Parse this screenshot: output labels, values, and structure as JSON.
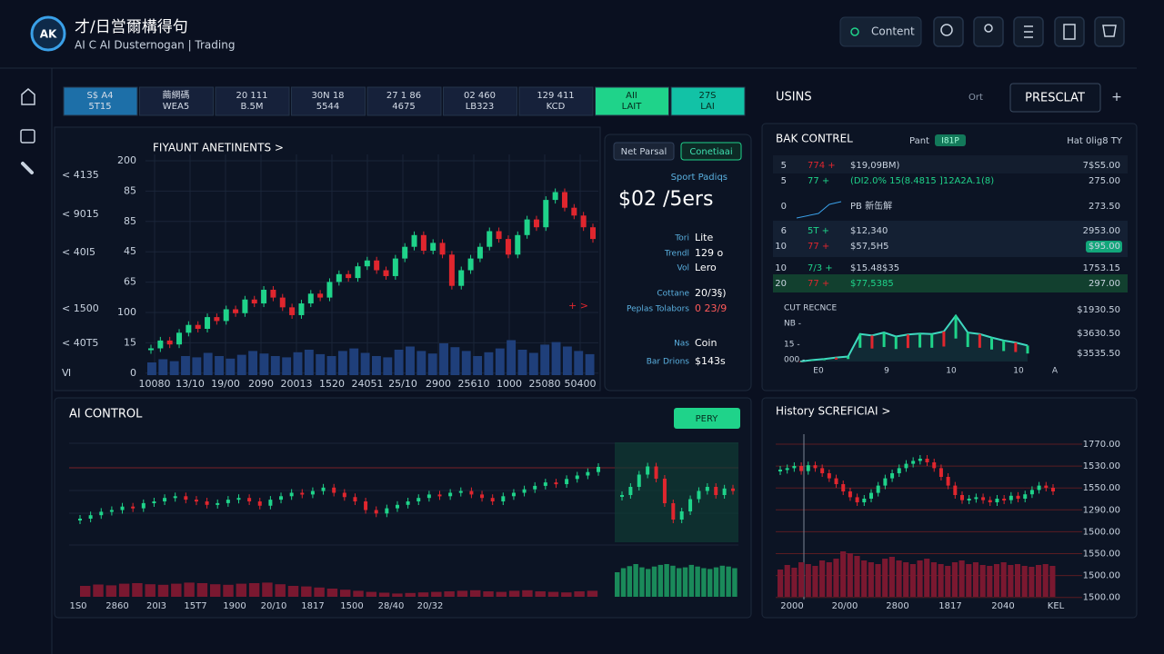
{
  "header": {
    "title": "才/日営爾構得句",
    "subtitle": "AI C AI Dusternogan | Trading",
    "content_button": "Content"
  },
  "tickers": [
    {
      "top": "S$ A4",
      "bottom": "5T15"
    },
    {
      "top": "繭網碼",
      "bottom": "WEA5"
    },
    {
      "top": "20 111",
      "bottom": "B.5M"
    },
    {
      "top": "30N 18",
      "bottom": "5544"
    },
    {
      "top": "27 1 86",
      "bottom": "4675"
    },
    {
      "top": "02 460",
      "bottom": "LB323"
    },
    {
      "top": "129 411",
      "bottom": "KCD"
    },
    {
      "top": "AII",
      "bottom": "LAIT"
    },
    {
      "top": "27S",
      "bottom": "LAI"
    }
  ],
  "main_chart": {
    "title": "FIYAUNT ANETINENTS >",
    "side_labels": [
      "< 4135",
      "< 9015",
      "< 40I5",
      "< 1500",
      "< 40T5",
      "Ⅵ"
    ],
    "y_labels": [
      "200",
      "85",
      "85",
      "45",
      "65",
      "100",
      "15",
      "0"
    ],
    "x_labels": [
      "10080",
      "13/10",
      "19/00",
      "2090",
      "20013",
      "1520",
      "24051",
      "25/10",
      "2900",
      "25610",
      "1000",
      "25080",
      "50400"
    ],
    "marker": "+ >",
    "closes": [
      10,
      14,
      12,
      18,
      22,
      20,
      26,
      24,
      30,
      28,
      35,
      33,
      40,
      36,
      31,
      27,
      33,
      38,
      36,
      44,
      48,
      46,
      52,
      55,
      50,
      47,
      56,
      62,
      68,
      60,
      64,
      58,
      42,
      50,
      56,
      62,
      70,
      66,
      58,
      68,
      76,
      72,
      86,
      90,
      82,
      78,
      72,
      66
    ],
    "volume": [
      20,
      25,
      22,
      30,
      28,
      35,
      30,
      26,
      32,
      38,
      34,
      30,
      28,
      36,
      40,
      33,
      30,
      38,
      42,
      35,
      30,
      28,
      40,
      45,
      38,
      34,
      50,
      44,
      38,
      30,
      36,
      42,
      55,
      40,
      35,
      48,
      52,
      45,
      38,
      33
    ]
  },
  "info_card": {
    "buttons": [
      "Net Parsal",
      "Conetiaai"
    ],
    "caption": "Sport Padiqs",
    "price": "$02 /5ers",
    "rows": [
      {
        "label": "Tori",
        "value": "Lite"
      },
      {
        "label": "Trendl",
        "value": "129 o"
      },
      {
        "label": "Vol",
        "value": "Lero"
      },
      {
        "label": "Cottane",
        "value": "20/3§)"
      },
      {
        "label": "Peplas Tolabors",
        "value": "0 23/9"
      },
      {
        "label": "Nas",
        "value": "Coin"
      },
      {
        "label": "Bar Drions",
        "value": "$143s"
      }
    ]
  },
  "right_panel": {
    "tabs": [
      "USINS",
      "Ort"
    ],
    "button": "PRESCLAT",
    "plus": "+",
    "title": "BAK CONTREL",
    "pair_label": "Pant",
    "pair_badge": "I81P",
    "right_note": "Hat 0lig8 TY",
    "rows": [
      [
        "5",
        "774 +",
        "$19,09BM)",
        "7$S5.00"
      ],
      [
        "5",
        "77 +",
        "(DI2.0% 15(8.4815 ]12A2A.1(8)",
        "275.00"
      ],
      [
        "0",
        "",
        "PB 新缶解",
        "273.50"
      ],
      [
        "6",
        "5T +",
        "$12,340",
        "2953.00"
      ],
      [
        "10",
        "77 +",
        "$57,5H5",
        "$95.00"
      ],
      [
        "10",
        "7/3 +",
        "$15.48$35",
        "1753.15"
      ],
      [
        "20",
        "77 +",
        "$77,5385",
        "297.00"
      ]
    ],
    "mini_chart": {
      "title": "CUT RECNCE",
      "left_labels": [
        "NB -",
        "15 -",
        "000 -"
      ],
      "right_labels": [
        "$1930.50",
        "$3630.50",
        "$3535.50"
      ],
      "x_labels": [
        "E0",
        "9",
        "10",
        "10",
        "A"
      ],
      "values": [
        0,
        3,
        5,
        8,
        10,
        55,
        52,
        58,
        50,
        54,
        56,
        55,
        60,
        92,
        58,
        55,
        48,
        42,
        38,
        32
      ]
    }
  },
  "ai_control": {
    "title": "AI CONTROL",
    "button": "PERY",
    "x_labels": [
      "1S0",
      "2860",
      "20I3",
      "15T7",
      "1900",
      "20/10",
      "1817",
      "1500",
      "28/40",
      "20/32"
    ],
    "closes": [
      20,
      24,
      28,
      30,
      34,
      32,
      38,
      40,
      44,
      46,
      42,
      40,
      36,
      38,
      42,
      44,
      40,
      35,
      42,
      46,
      50,
      48,
      52,
      56,
      50,
      45,
      40,
      30,
      26,
      32,
      36,
      40,
      44,
      48,
      46,
      50,
      52,
      48,
      44,
      40,
      46,
      50,
      54,
      58,
      62,
      60,
      66,
      70,
      74,
      80
    ],
    "inset": [
      50,
      60,
      75,
      85,
      70,
      40,
      20,
      30,
      45,
      55,
      60,
      50,
      58,
      55
    ],
    "volume": [
      40,
      45,
      42,
      48,
      50,
      46,
      44,
      48,
      52,
      50,
      46,
      44,
      48,
      50,
      52,
      46,
      40,
      38,
      34,
      30,
      26,
      22,
      18,
      15,
      12,
      14,
      16,
      18,
      20,
      22,
      24,
      20,
      18,
      22,
      24,
      20,
      18,
      16,
      20,
      22
    ],
    "inset_volume": [
      60,
      70,
      75,
      80,
      72,
      68,
      74,
      78,
      80,
      76,
      70,
      72,
      78,
      74,
      70,
      68,
      72,
      76,
      74,
      70
    ]
  },
  "history": {
    "title": "History SCREFICIAI >",
    "y_labels": [
      "1770.00",
      "1530.00",
      "1550.00",
      "1290.00",
      "1500.00",
      "1550.00",
      "1500.00",
      "1500.00"
    ],
    "x_labels": [
      "2000",
      "20/00",
      "2800",
      "1817",
      "2040",
      "KEL"
    ],
    "closes": [
      60,
      62,
      65,
      58,
      66,
      62,
      55,
      48,
      40,
      30,
      22,
      15,
      20,
      28,
      38,
      48,
      55,
      62,
      68,
      72,
      75,
      70,
      62,
      50,
      38,
      25,
      18,
      20,
      22,
      18,
      15,
      20,
      18,
      24,
      20,
      26,
      32,
      38,
      35,
      30
    ],
    "volume": [
      30,
      35,
      32,
      38,
      36,
      34,
      40,
      38,
      42,
      50,
      48,
      45,
      40,
      38,
      36,
      42,
      44,
      40,
      38,
      36,
      40,
      42,
      38,
      36,
      34,
      38,
      40,
      36,
      38,
      35,
      34,
      36,
      38,
      35,
      36,
      34,
      33,
      35,
      36,
      34
    ]
  }
}
